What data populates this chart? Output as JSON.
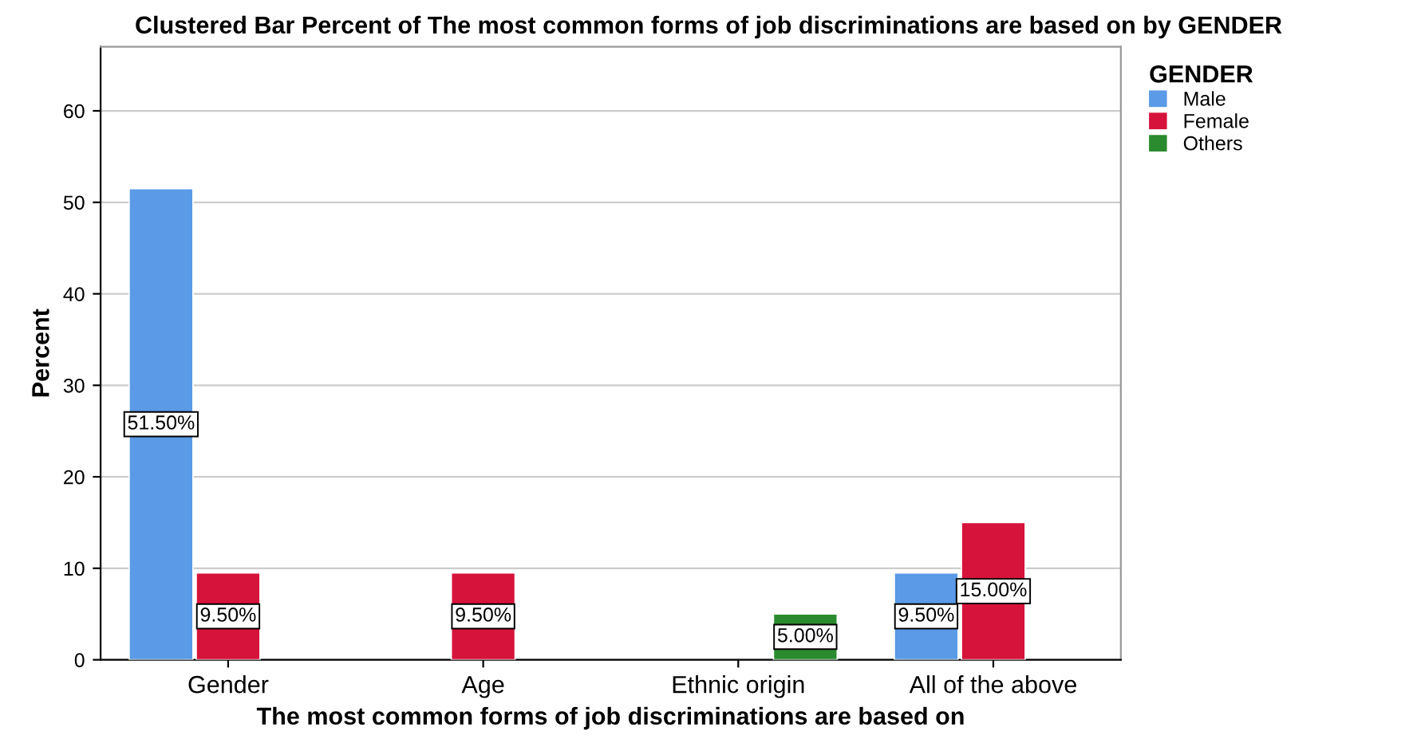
{
  "chart_data": {
    "type": "bar",
    "title": "Clustered Bar Percent of The most common forms of job discriminations are based on by GENDER",
    "xlabel": "The most common forms of job discriminations are based on",
    "ylabel": "Percent",
    "legend_title": "GENDER",
    "categories": [
      "Gender",
      "Age",
      "Ethnic origin",
      "All of the above"
    ],
    "series": [
      {
        "name": "Male",
        "color": "#5a9ae6",
        "values": [
          51.5,
          null,
          null,
          9.5
        ],
        "value_labels": [
          "51.50%",
          null,
          null,
          "9.50%"
        ]
      },
      {
        "name": "Female",
        "color": "#d6133b",
        "values": [
          9.5,
          9.5,
          null,
          15.0
        ],
        "value_labels": [
          "9.50%",
          "9.50%",
          null,
          "15.00%"
        ]
      },
      {
        "name": "Others",
        "color": "#2a8a2e",
        "values": [
          null,
          null,
          5.0,
          null
        ],
        "value_labels": [
          null,
          null,
          "5.00%",
          null
        ]
      }
    ],
    "ylim": [
      0,
      67
    ],
    "yticks": [
      0,
      10,
      20,
      30,
      40,
      50,
      60
    ],
    "grid": "y",
    "legend": "top right"
  }
}
